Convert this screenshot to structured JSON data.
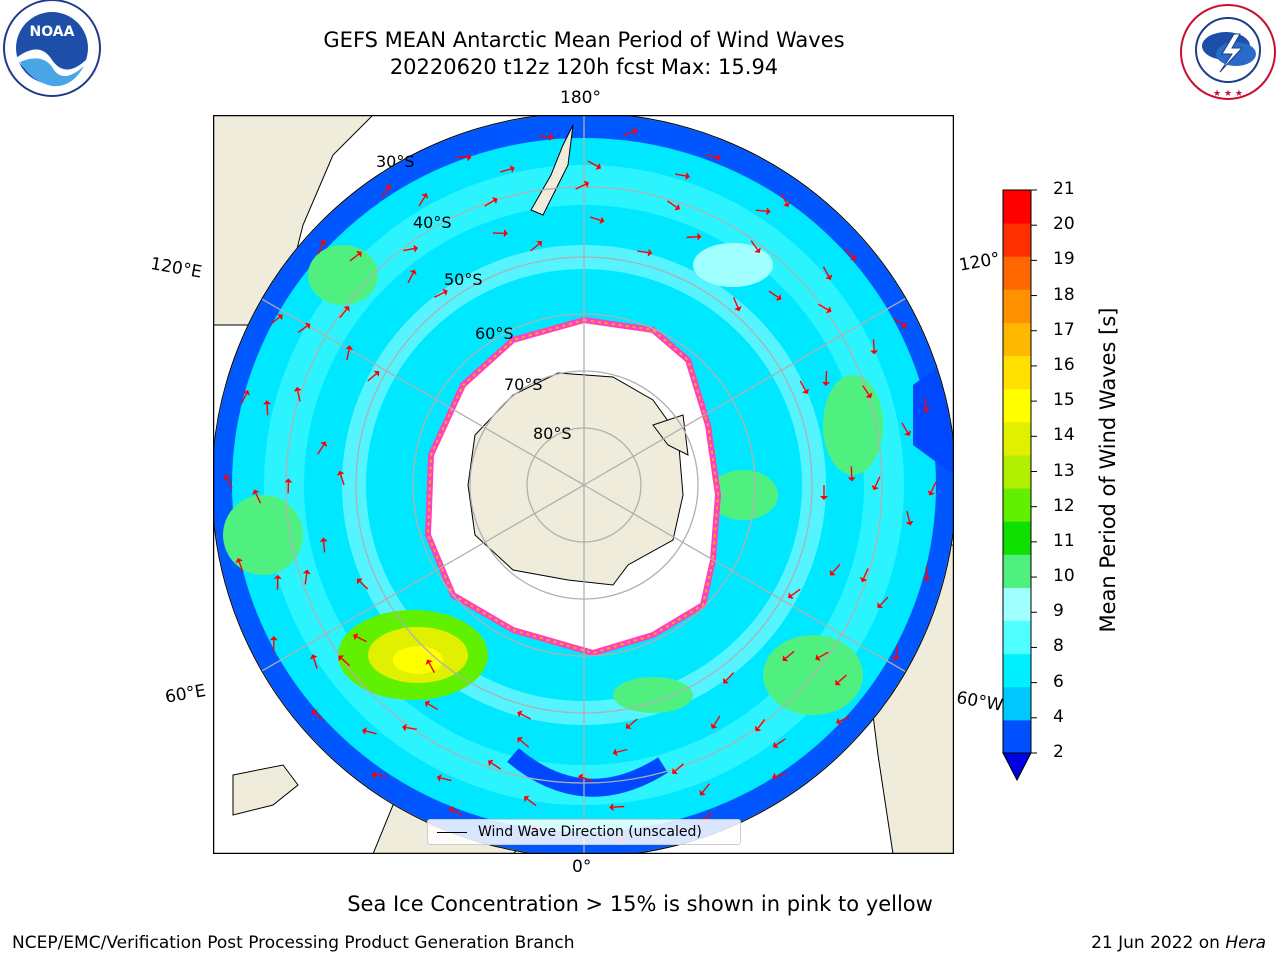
{
  "title": {
    "line1": "GEFS MEAN Antarctic Mean Period of Wind Waves",
    "line2": "20220620 t12z 120h fcst   Max: 15.94"
  },
  "logos": {
    "noaa": {
      "text": "NOAA",
      "ring_text": "NATIONAL OCEANIC AND ATMOSPHERIC ADMINISTRATION · U.S. DEPARTMENT OF COMMERCE"
    },
    "nws": {
      "ring_text": "NATIONAL WEATHER SERVICE"
    }
  },
  "longitude_labels": {
    "top": "180°",
    "bottom": "0°",
    "left_top": "120°E",
    "left_bottom": "60°E",
    "right_top": "120°",
    "right_bottom": "60°W"
  },
  "latitude_labels": [
    "30°S",
    "40°S",
    "50°S",
    "60°S",
    "70°S",
    "80°S"
  ],
  "legend": {
    "label": "Wind Wave Direction (unscaled)"
  },
  "colorbar": {
    "label": "Mean Period of Wind Waves [s]",
    "ticks": [
      "21",
      "20",
      "19",
      "18",
      "17",
      "16",
      "15",
      "14",
      "13",
      "12",
      "11",
      "10",
      "9",
      "8",
      "6",
      "4",
      "2"
    ],
    "colors_bottom_to_top": [
      "#0050ff",
      "#00c8ff",
      "#00f0ff",
      "#50ffff",
      "#a0ffff",
      "#50f080",
      "#10e000",
      "#60f000",
      "#b0f000",
      "#e0f000",
      "#ffff00",
      "#ffe000",
      "#ffb800",
      "#ff9000",
      "#ff6800",
      "#ff3000",
      "#ff0000"
    ],
    "extend_color": "#0000e0"
  },
  "map": {
    "land_color": "#efecdc",
    "ice_color": "#ffffff",
    "ice_edge_colors": [
      "#ff40c0",
      "#ffb000"
    ],
    "arrow_color": "#ff0000",
    "graticule_color": "#b0b0b0"
  },
  "notes": {
    "sea_ice": "Sea Ice Concentration > 15% is shown in pink to yellow",
    "producer": "NCEP/EMC/Verification Post Processing Product Generation Branch",
    "date_prefix": "21 Jun 2022 on ",
    "machine": "Hera"
  }
}
